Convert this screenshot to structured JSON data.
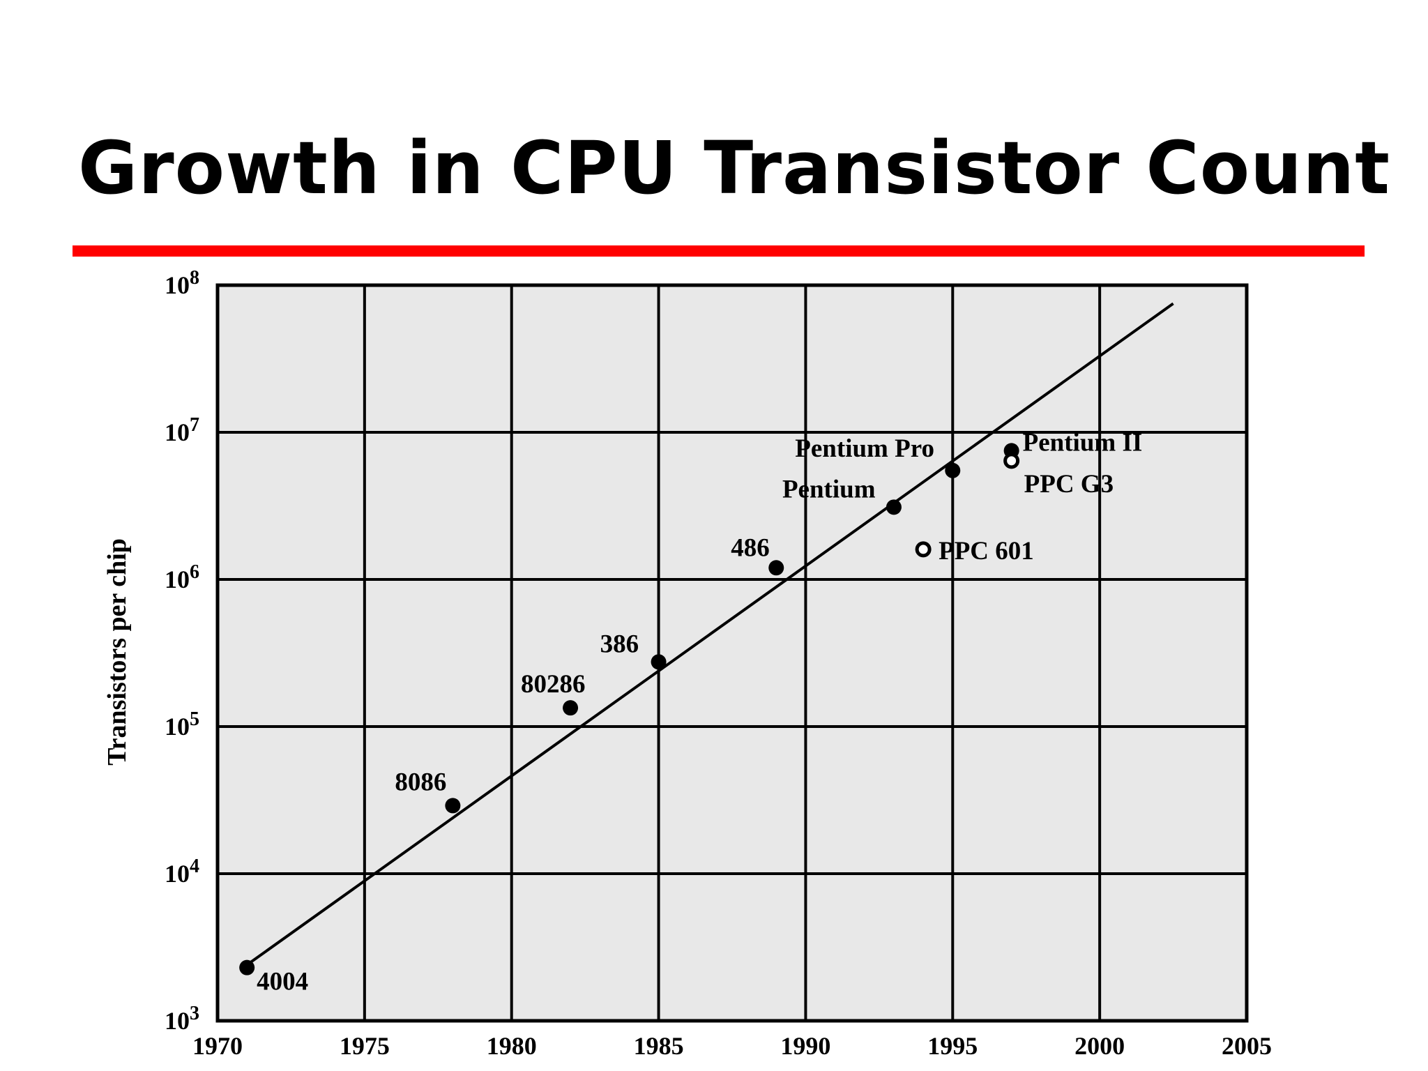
{
  "slide": {
    "title": "Growth in CPU Transistor Count",
    "accent_color": "#ff0000"
  },
  "chart_data": {
    "type": "scatter",
    "title": "",
    "xlabel": "",
    "ylabel": "Transistors per chip",
    "xlim": [
      1970,
      2005
    ],
    "ylim": [
      1000,
      100000000
    ],
    "y_scale": "log",
    "grid": true,
    "plot_background": "#e8e8e8",
    "x_ticks": [
      "1970",
      "1975",
      "1980",
      "1985",
      "1990",
      "1995",
      "2000",
      "2005"
    ],
    "y_ticks": [
      {
        "base": "10",
        "exp": "3"
      },
      {
        "base": "10",
        "exp": "4"
      },
      {
        "base": "10",
        "exp": "5"
      },
      {
        "base": "10",
        "exp": "6"
      },
      {
        "base": "10",
        "exp": "7"
      },
      {
        "base": "10",
        "exp": "8"
      }
    ],
    "points": [
      {
        "label": "4004",
        "x": 1971,
        "y": 2300,
        "marker": "filled"
      },
      {
        "label": "8086",
        "x": 1978,
        "y": 29000,
        "marker": "filled"
      },
      {
        "label": "80286",
        "x": 1982,
        "y": 134000,
        "marker": "filled"
      },
      {
        "label": "386",
        "x": 1985,
        "y": 275000,
        "marker": "filled"
      },
      {
        "label": "486",
        "x": 1989,
        "y": 1200000,
        "marker": "filled"
      },
      {
        "label": "Pentium",
        "x": 1993,
        "y": 3100000,
        "marker": "filled"
      },
      {
        "label": "Pentium Pro",
        "x": 1995,
        "y": 5500000,
        "marker": "filled"
      },
      {
        "label": "Pentium II",
        "x": 1997,
        "y": 7500000,
        "marker": "filled"
      },
      {
        "label": "PPC 601",
        "x": 1994,
        "y": 1600000,
        "marker": "open"
      },
      {
        "label": "PPC G3",
        "x": 1997,
        "y": 6400000,
        "marker": "open"
      }
    ],
    "trend_line": {
      "x": [
        1971,
        2002.5
      ],
      "y": [
        2400,
        75000000
      ]
    }
  }
}
